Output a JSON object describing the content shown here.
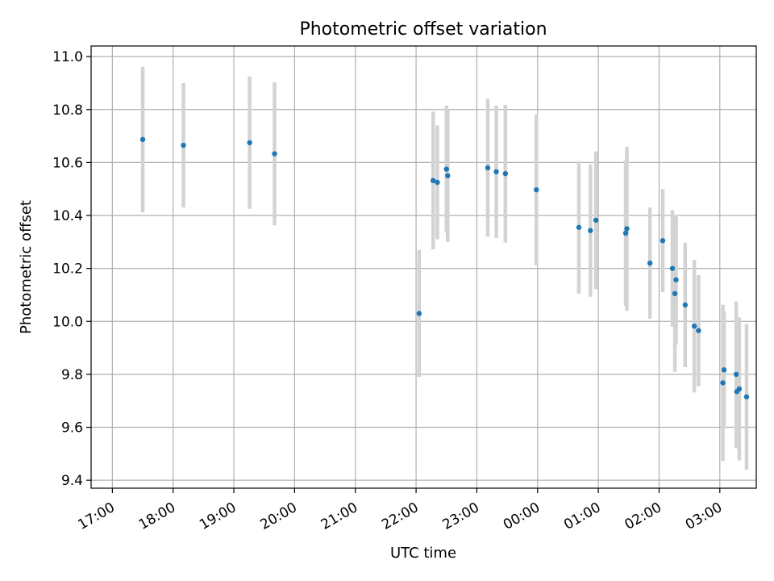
{
  "chart_data": {
    "type": "scatter",
    "title": "Photometric offset variation",
    "xlabel": "UTC time",
    "ylabel": "Photometric offset",
    "x_axis": "time (hours since 17:00 UTC; ticks wrap past midnight)",
    "xlim": [
      -0.35,
      10.6
    ],
    "ylim": [
      9.37,
      11.04
    ],
    "xticks": [
      {
        "x": 0,
        "label": "17:00"
      },
      {
        "x": 1,
        "label": "18:00"
      },
      {
        "x": 2,
        "label": "19:00"
      },
      {
        "x": 3,
        "label": "20:00"
      },
      {
        "x": 4,
        "label": "21:00"
      },
      {
        "x": 5,
        "label": "22:00"
      },
      {
        "x": 6,
        "label": "23:00"
      },
      {
        "x": 7,
        "label": "00:00"
      },
      {
        "x": 8,
        "label": "01:00"
      },
      {
        "x": 9,
        "label": "02:00"
      },
      {
        "x": 10,
        "label": "03:00"
      }
    ],
    "yticks": [
      {
        "y": 9.4,
        "label": "9.4"
      },
      {
        "y": 9.6,
        "label": "9.6"
      },
      {
        "y": 9.8,
        "label": "9.8"
      },
      {
        "y": 10.0,
        "label": "10.0"
      },
      {
        "y": 10.2,
        "label": "10.2"
      },
      {
        "y": 10.4,
        "label": "10.4"
      },
      {
        "y": 10.6,
        "label": "10.6"
      },
      {
        "y": 10.8,
        "label": "10.8"
      },
      {
        "y": 11.0,
        "label": "11.0"
      }
    ],
    "grid": true,
    "colors": {
      "point": "#1f77b4",
      "errorbar": "#d3d3d3",
      "grid": "#b0b0b0",
      "axes": "#000000"
    },
    "points": [
      {
        "x": 0.5,
        "y": 10.687,
        "err": 0.275
      },
      {
        "x": 1.17,
        "y": 10.665,
        "err": 0.235
      },
      {
        "x": 2.26,
        "y": 10.675,
        "err": 0.25
      },
      {
        "x": 2.67,
        "y": 10.633,
        "err": 0.27
      },
      {
        "x": 5.05,
        "y": 10.03,
        "err": 0.24
      },
      {
        "x": 5.28,
        "y": 10.532,
        "err": 0.26
      },
      {
        "x": 5.35,
        "y": 10.525,
        "err": 0.215
      },
      {
        "x": 5.5,
        "y": 10.575,
        "err": 0.24
      },
      {
        "x": 5.52,
        "y": 10.55,
        "err": 0.25
      },
      {
        "x": 6.18,
        "y": 10.58,
        "err": 0.26
      },
      {
        "x": 6.32,
        "y": 10.565,
        "err": 0.25
      },
      {
        "x": 6.47,
        "y": 10.558,
        "err": 0.26
      },
      {
        "x": 6.98,
        "y": 10.497,
        "err": 0.285
      },
      {
        "x": 7.68,
        "y": 10.355,
        "err": 0.25
      },
      {
        "x": 7.87,
        "y": 10.343,
        "err": 0.25
      },
      {
        "x": 7.96,
        "y": 10.382,
        "err": 0.26
      },
      {
        "x": 8.45,
        "y": 10.333,
        "err": 0.275
      },
      {
        "x": 8.47,
        "y": 10.35,
        "err": 0.31
      },
      {
        "x": 8.85,
        "y": 10.22,
        "err": 0.21
      },
      {
        "x": 9.06,
        "y": 10.305,
        "err": 0.195
      },
      {
        "x": 9.22,
        "y": 10.2,
        "err": 0.22
      },
      {
        "x": 9.26,
        "y": 10.105,
        "err": 0.295
      },
      {
        "x": 9.28,
        "y": 10.157,
        "err": 0.245
      },
      {
        "x": 9.43,
        "y": 10.062,
        "err": 0.235
      },
      {
        "x": 9.58,
        "y": 9.982,
        "err": 0.25
      },
      {
        "x": 9.65,
        "y": 9.965,
        "err": 0.21
      },
      {
        "x": 10.05,
        "y": 9.768,
        "err": 0.295
      },
      {
        "x": 10.07,
        "y": 9.817,
        "err": 0.22
      },
      {
        "x": 10.27,
        "y": 9.8,
        "err": 0.275
      },
      {
        "x": 10.28,
        "y": 9.735,
        "err": 0.215
      },
      {
        "x": 10.32,
        "y": 9.745,
        "err": 0.27
      },
      {
        "x": 10.44,
        "y": 9.715,
        "err": 0.275
      }
    ]
  }
}
